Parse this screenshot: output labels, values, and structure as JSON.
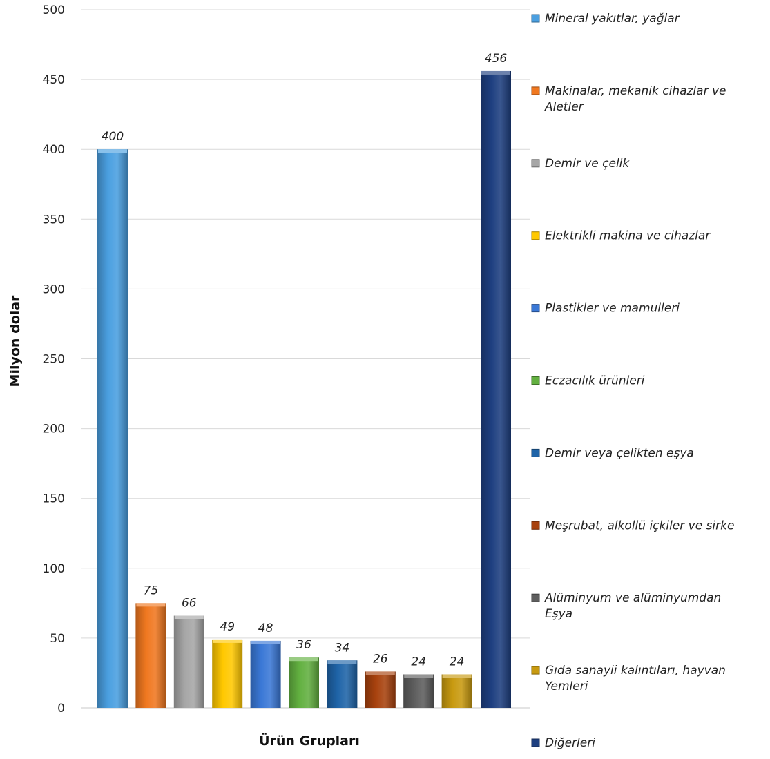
{
  "chart_data": {
    "type": "bar",
    "xlabel": "Ürün Grupları",
    "ylabel": "Milyon dolar",
    "ylim": [
      0,
      500
    ],
    "ytick_step": 50,
    "yticks": [
      "0",
      "50",
      "100",
      "150",
      "200",
      "250",
      "300",
      "350",
      "400",
      "450",
      "500"
    ],
    "grid": true,
    "legend_position": "right",
    "categories": [
      [
        "Mineral yakıtlar, yağlar"
      ],
      [
        "Makinalar, mekanik cihazlar ve",
        "Aletler"
      ],
      [
        "Demir ve çelik"
      ],
      [
        "Elektrikli makina ve cihazlar"
      ],
      [
        "Plastikler ve mamulleri"
      ],
      [
        "Eczacılık ürünleri"
      ],
      [
        "Demir veya çelikten eşya"
      ],
      [
        "Meşrubat, alkollü içkiler ve sirke"
      ],
      [
        "Alüminyum ve alüminyumdan",
        "Eşya"
      ],
      [
        "Gıda sanayii kalıntıları, hayvan",
        "Yemleri"
      ],
      [
        "Diğerleri"
      ]
    ],
    "values": [
      400,
      75,
      66,
      49,
      48,
      36,
      34,
      26,
      24,
      24,
      456
    ],
    "data_labels": [
      "400",
      "75",
      "66",
      "49",
      "48",
      "36",
      "34",
      "26",
      "24",
      "24",
      "456"
    ],
    "colors": [
      "#4a9fe0",
      "#f07820",
      "#a6a6a6",
      "#ffc800",
      "#3a78d6",
      "#62b040",
      "#1f64a8",
      "#a8420e",
      "#5e5e5e",
      "#c89a10",
      "#1e3f80"
    ]
  }
}
